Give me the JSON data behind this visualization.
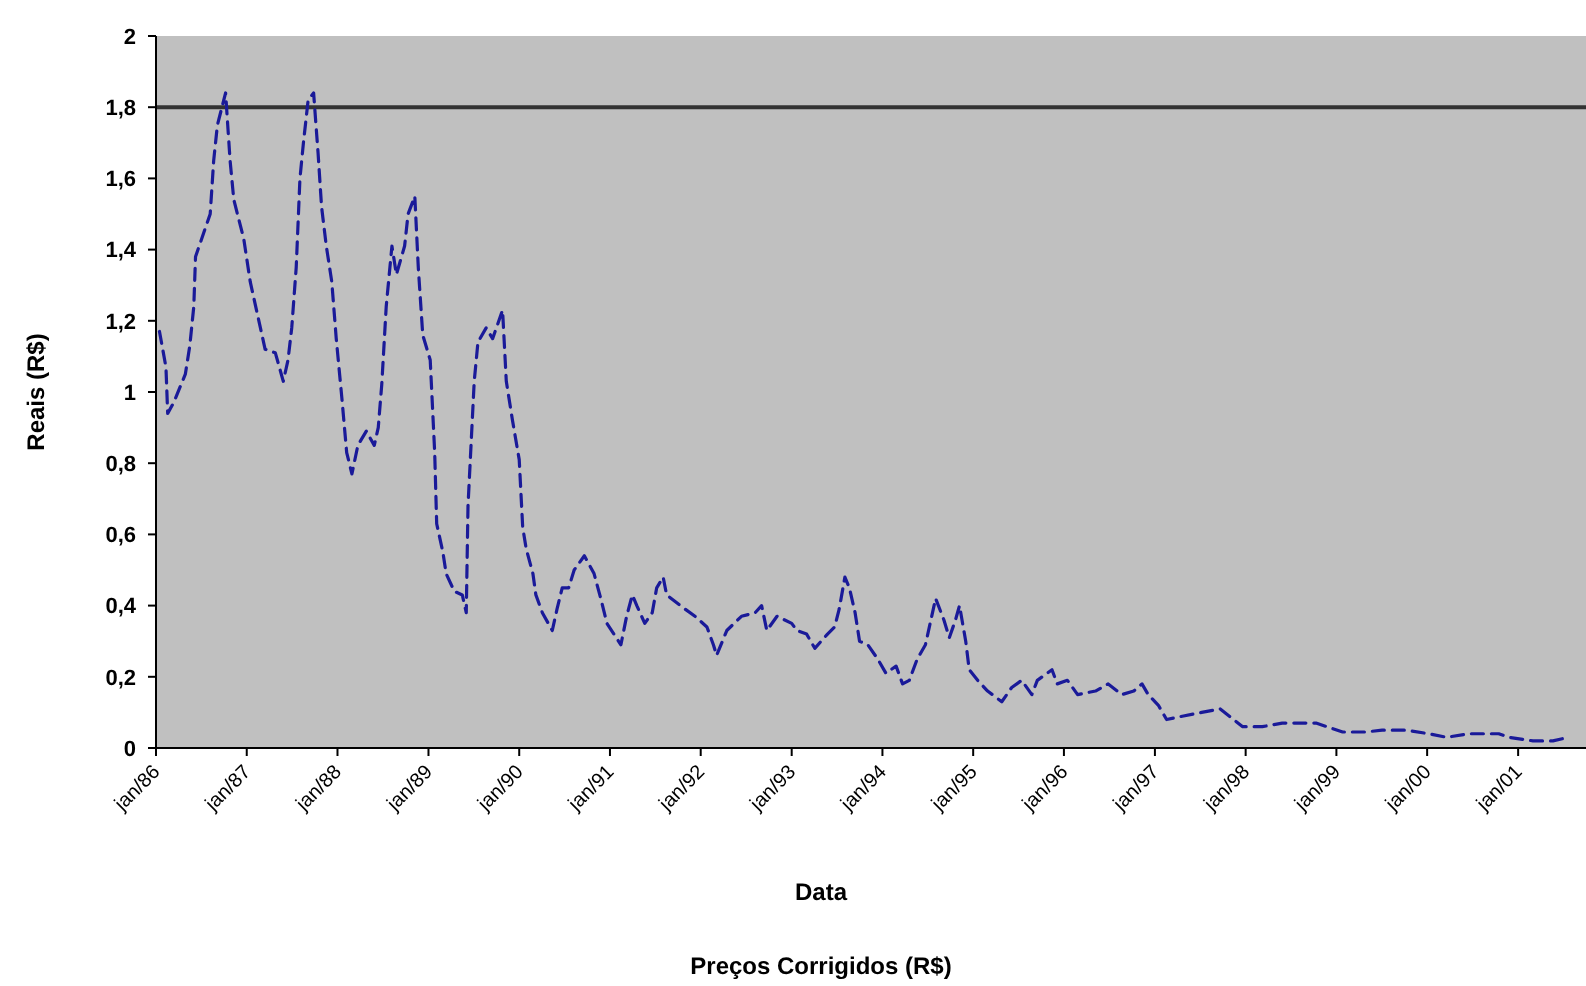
{
  "chart_data": {
    "type": "line",
    "title": "Preços Corrigidos (R$)",
    "xlabel": "Data",
    "ylabel": "Reais (R$)",
    "xlim": [
      "1986-01",
      "2001-10"
    ],
    "ylim": [
      0,
      2
    ],
    "xticks": [
      {
        "value": "1986-01",
        "label": "jan/86"
      },
      {
        "value": "1987-01",
        "label": "jan/87"
      },
      {
        "value": "1988-01",
        "label": "jan/88"
      },
      {
        "value": "1989-01",
        "label": "jan/89"
      },
      {
        "value": "1990-01",
        "label": "jan/90"
      },
      {
        "value": "1991-01",
        "label": "jan/91"
      },
      {
        "value": "1992-01",
        "label": "jan/92"
      },
      {
        "value": "1993-01",
        "label": "jan/93"
      },
      {
        "value": "1994-01",
        "label": "jan/94"
      },
      {
        "value": "1995-01",
        "label": "jan/95"
      },
      {
        "value": "1996-01",
        "label": "jan/96"
      },
      {
        "value": "1997-01",
        "label": "jan/97"
      },
      {
        "value": "1998-01",
        "label": "jan/98"
      },
      {
        "value": "1999-01",
        "label": "jan/99"
      },
      {
        "value": "2000-01",
        "label": "jan/00"
      },
      {
        "value": "2001-01",
        "label": "jan/01"
      }
    ],
    "yticks": [
      0,
      {
        "value": 0.2,
        "label": "0,2"
      },
      {
        "value": 0.4,
        "label": "0,4"
      },
      {
        "value": 0.6,
        "label": "0,6"
      },
      {
        "value": 0.8,
        "label": "0,8"
      },
      1,
      {
        "value": 1.2,
        "label": "1,2"
      },
      {
        "value": 1.4,
        "label": "1,4"
      },
      {
        "value": 1.6,
        "label": "1,6"
      },
      {
        "value": 1.8,
        "label": "1,8"
      },
      2
    ],
    "ref_lines": [
      {
        "axis": "y",
        "value": 1.8,
        "color": "#333333"
      }
    ],
    "line_style": "dashed",
    "series": [
      {
        "color": "#1a1a99",
        "x": [
          "1986-01-15",
          "1986-02-10",
          "1986-02-17",
          "1986-03-13",
          "1986-04-29",
          "1986-05-17",
          "1986-06-02",
          "1986-06-09",
          "1986-08-07",
          "1986-08-21",
          "1986-09-05",
          "1986-10-08",
          "1986-10-26",
          "1986-11-10",
          "1986-12-20",
          "1987-01-15",
          "1987-02-25",
          "1987-03-16",
          "1987-04-26",
          "1987-05-28",
          "1987-06-16",
          "1987-07-01",
          "1987-07-19",
          "1987-08-03",
          "1987-08-17",
          "1987-09-05",
          "1987-09-27",
          "1987-10-15",
          "1987-10-29",
          "1987-11-17",
          "1987-12-09",
          "1987-12-27",
          "1988-01-19",
          "1988-02-07",
          "1988-02-28",
          "1988-03-23",
          "1988-04-26",
          "1988-05-28",
          "1988-06-13",
          "1988-06-27",
          "1988-07-15",
          "1988-08-07",
          "1988-08-25",
          "1988-09-27",
          "1988-10-11",
          "1988-11-07",
          "1988-11-21",
          "1988-12-09",
          "1989-01-08",
          "1989-01-26",
          "1989-02-03",
          "1989-02-28",
          "1989-03-13",
          "1989-04-15",
          "1989-05-17",
          "1989-06-02",
          "1989-06-09",
          "1989-07-04",
          "1989-07-19",
          "1989-08-21",
          "1989-09-16",
          "1989-10-01",
          "1989-10-26",
          "1989-11-10",
          "1989-12-05",
          "1990-01-01",
          "1990-01-15",
          "1990-01-29",
          "1990-02-25",
          "1990-03-09",
          "1990-04-04",
          "1990-05-14",
          "1990-06-02",
          "1990-06-23",
          "1990-07-19",
          "1990-08-10",
          "1990-09-20",
          "1990-10-29",
          "1990-11-25",
          "1990-12-20",
          "1991-02-14",
          "1991-03-09",
          "1991-04-01",
          "1991-04-19",
          "1991-05-21",
          "1991-06-20",
          "1991-07-08",
          "1991-08-03",
          "1991-08-17",
          "1991-10-11",
          "1991-12-09",
          "1992-01-26",
          "1992-02-21",
          "1992-03-05",
          "1992-04-15",
          "1992-06-13",
          "1992-08-07",
          "1992-09-02",
          "1992-09-23",
          "1992-11-03",
          "1993-01-01",
          "1993-01-22",
          "1993-03-02",
          "1993-04-04",
          "1993-05-25",
          "1993-06-23",
          "1993-07-11",
          "1993-08-03",
          "1993-08-21",
          "1993-09-13",
          "1993-10-01",
          "1993-11-03",
          "1993-12-13",
          "1994-01-15",
          "1994-02-25",
          "1994-03-23",
          "1994-04-19",
          "1994-05-21",
          "1994-06-23",
          "1994-07-15",
          "1994-08-03",
          "1994-09-05",
          "1994-09-27",
          "1994-10-22",
          "1994-11-07",
          "1994-12-02",
          "1994-12-16",
          "1995-01-19",
          "1995-02-28",
          "1995-04-26",
          "1995-06-05",
          "1995-07-15",
          "1995-08-25",
          "1995-09-16",
          "1995-11-14",
          "1995-12-05",
          "1996-01-15",
          "1996-02-25",
          "1996-05-07",
          "1996-06-27",
          "1996-08-21",
          "1996-10-08",
          "1996-11-10",
          "1996-12-05",
          "1997-01-15",
          "1997-02-17",
          "1997-04-26",
          "1997-07-08",
          "1997-09-20",
          "1997-12-20",
          "1998-03-09",
          "1998-05-28",
          "1998-08-17",
          "1998-10-11",
          "1999-01-26",
          "1999-04-29",
          "1999-07-04",
          "1999-10-08",
          "2000-01-08",
          "2000-03-20",
          "2000-06-16",
          "2000-10-15",
          "2000-11-25",
          "2001-03-02",
          "2001-05-21",
          "2001-07-22"
        ],
        "values": [
          1.17,
          1.07,
          0.94,
          0.97,
          1.05,
          1.13,
          1.24,
          1.38,
          1.5,
          1.65,
          1.75,
          1.84,
          1.65,
          1.54,
          1.43,
          1.31,
          1.18,
          1.12,
          1.11,
          1.03,
          1.09,
          1.18,
          1.35,
          1.6,
          1.7,
          1.82,
          1.84,
          1.67,
          1.52,
          1.41,
          1.31,
          1.15,
          0.98,
          0.83,
          0.77,
          0.85,
          0.89,
          0.85,
          0.9,
          1.02,
          1.24,
          1.41,
          1.33,
          1.41,
          1.5,
          1.55,
          1.35,
          1.16,
          1.09,
          0.83,
          0.63,
          0.55,
          0.49,
          0.44,
          0.43,
          0.38,
          0.68,
          1.03,
          1.14,
          1.18,
          1.15,
          1.18,
          1.23,
          1.03,
          0.92,
          0.81,
          0.62,
          0.56,
          0.49,
          0.43,
          0.38,
          0.33,
          0.39,
          0.45,
          0.45,
          0.5,
          0.54,
          0.49,
          0.42,
          0.35,
          0.29,
          0.37,
          0.43,
          0.4,
          0.35,
          0.38,
          0.45,
          0.48,
          0.43,
          0.4,
          0.37,
          0.34,
          0.29,
          0.26,
          0.33,
          0.37,
          0.38,
          0.4,
          0.33,
          0.37,
          0.35,
          0.33,
          0.32,
          0.28,
          0.32,
          0.34,
          0.39,
          0.48,
          0.45,
          0.38,
          0.3,
          0.29,
          0.25,
          0.21,
          0.23,
          0.18,
          0.19,
          0.25,
          0.29,
          0.36,
          0.42,
          0.36,
          0.31,
          0.36,
          0.4,
          0.3,
          0.22,
          0.19,
          0.16,
          0.13,
          0.17,
          0.19,
          0.15,
          0.19,
          0.22,
          0.18,
          0.19,
          0.15,
          0.16,
          0.18,
          0.15,
          0.16,
          0.18,
          0.15,
          0.12,
          0.08,
          0.09,
          0.1,
          0.11,
          0.06,
          0.06,
          0.07,
          0.07,
          0.07,
          0.045,
          0.045,
          0.05,
          0.05,
          0.04,
          0.03,
          0.04,
          0.04,
          0.03,
          0.02,
          0.02,
          0.03
        ]
      }
    ]
  }
}
